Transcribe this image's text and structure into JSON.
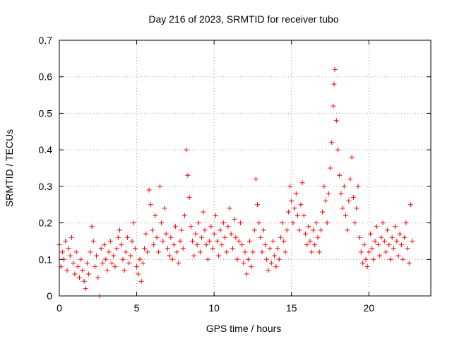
{
  "chart_data": {
    "type": "scatter",
    "title": "Day 216 of 2023, SRMTID for receiver tubo",
    "xlabel": "GPS time / hours",
    "ylabel": "SRMTID / TECUs",
    "xlim": [
      0,
      24
    ],
    "ylim": [
      0,
      0.7
    ],
    "xticks": [
      0,
      5,
      10,
      15,
      20
    ],
    "yticks": [
      0,
      0.1,
      0.2,
      0.3,
      0.4,
      0.5,
      0.6,
      0.7
    ],
    "xtick_labels": [
      "0",
      "5",
      "10",
      "15",
      "20"
    ],
    "ytick_labels": [
      "0",
      "0.1",
      "0.2",
      "0.3",
      "0.4",
      "0.5",
      "0.6",
      "0.7"
    ],
    "grid": true,
    "marker": "plus",
    "color": "#ff0000",
    "series": [
      {
        "name": "SRMTID",
        "points": [
          [
            0.0,
            0.14
          ],
          [
            0.1,
            0.08
          ],
          [
            0.2,
            0.12
          ],
          [
            0.3,
            0.1
          ],
          [
            0.4,
            0.15
          ],
          [
            0.5,
            0.07
          ],
          [
            0.6,
            0.13
          ],
          [
            0.7,
            0.11
          ],
          [
            0.8,
            0.16
          ],
          [
            0.9,
            0.09
          ],
          [
            1.0,
            0.06
          ],
          [
            1.1,
            0.12
          ],
          [
            1.2,
            0.08
          ],
          [
            1.3,
            0.05
          ],
          [
            1.4,
            0.1
          ],
          [
            1.5,
            0.07
          ],
          [
            1.6,
            0.04
          ],
          [
            1.7,
            0.02
          ],
          [
            1.8,
            0.09
          ],
          [
            1.9,
            0.06
          ],
          [
            2.0,
            0.12
          ],
          [
            2.1,
            0.19
          ],
          [
            2.2,
            0.15
          ],
          [
            2.3,
            0.08
          ],
          [
            2.4,
            0.11
          ],
          [
            2.5,
            0.05
          ],
          [
            2.6,
            0.0
          ],
          [
            2.7,
            0.13
          ],
          [
            2.8,
            0.09
          ],
          [
            2.9,
            0.14
          ],
          [
            3.0,
            0.1
          ],
          [
            3.1,
            0.07
          ],
          [
            3.2,
            0.12
          ],
          [
            3.3,
            0.15
          ],
          [
            3.4,
            0.09
          ],
          [
            3.5,
            0.11
          ],
          [
            3.6,
            0.08
          ],
          [
            3.7,
            0.13
          ],
          [
            3.8,
            0.16
          ],
          [
            3.9,
            0.18
          ],
          [
            4.0,
            0.14
          ],
          [
            4.1,
            0.1
          ],
          [
            4.2,
            0.07
          ],
          [
            4.3,
            0.12
          ],
          [
            4.4,
            0.16
          ],
          [
            4.5,
            0.09
          ],
          [
            4.6,
            0.11
          ],
          [
            4.7,
            0.15
          ],
          [
            4.8,
            0.2
          ],
          [
            4.9,
            0.13
          ],
          [
            5.0,
            0.08
          ],
          [
            5.1,
            0.06
          ],
          [
            5.2,
            0.1
          ],
          [
            5.3,
            0.04
          ],
          [
            5.4,
            0.09
          ],
          [
            5.5,
            0.13
          ],
          [
            5.6,
            0.17
          ],
          [
            5.7,
            0.12
          ],
          [
            5.8,
            0.29
          ],
          [
            5.9,
            0.25
          ],
          [
            6.0,
            0.18
          ],
          [
            6.1,
            0.14
          ],
          [
            6.2,
            0.22
          ],
          [
            6.3,
            0.16
          ],
          [
            6.4,
            0.12
          ],
          [
            6.5,
            0.3
          ],
          [
            6.6,
            0.2
          ],
          [
            6.7,
            0.15
          ],
          [
            6.8,
            0.24
          ],
          [
            6.9,
            0.17
          ],
          [
            7.0,
            0.13
          ],
          [
            7.1,
            0.11
          ],
          [
            7.2,
            0.16
          ],
          [
            7.3,
            0.1
          ],
          [
            7.4,
            0.14
          ],
          [
            7.5,
            0.19
          ],
          [
            7.6,
            0.12
          ],
          [
            7.7,
            0.09
          ],
          [
            7.8,
            0.15
          ],
          [
            7.9,
            0.18
          ],
          [
            8.0,
            0.13
          ],
          [
            8.1,
            0.22
          ],
          [
            8.2,
            0.4
          ],
          [
            8.3,
            0.33
          ],
          [
            8.4,
            0.27
          ],
          [
            8.5,
            0.19
          ],
          [
            8.6,
            0.15
          ],
          [
            8.7,
            0.11
          ],
          [
            8.8,
            0.17
          ],
          [
            8.9,
            0.14
          ],
          [
            9.0,
            0.2
          ],
          [
            9.1,
            0.12
          ],
          [
            9.2,
            0.16
          ],
          [
            9.3,
            0.23
          ],
          [
            9.4,
            0.18
          ],
          [
            9.5,
            0.14
          ],
          [
            9.6,
            0.1
          ],
          [
            9.7,
            0.15
          ],
          [
            9.8,
            0.19
          ],
          [
            9.9,
            0.13
          ],
          [
            10.0,
            0.17
          ],
          [
            10.1,
            0.22
          ],
          [
            10.2,
            0.15
          ],
          [
            10.3,
            0.11
          ],
          [
            10.4,
            0.18
          ],
          [
            10.5,
            0.14
          ],
          [
            10.6,
            0.2
          ],
          [
            10.7,
            0.16
          ],
          [
            10.8,
            0.12
          ],
          [
            10.9,
            0.19
          ],
          [
            11.0,
            0.24
          ],
          [
            11.1,
            0.17
          ],
          [
            11.2,
            0.13
          ],
          [
            11.3,
            0.21
          ],
          [
            11.4,
            0.16
          ],
          [
            11.5,
            0.1
          ],
          [
            11.6,
            0.15
          ],
          [
            11.7,
            0.2
          ],
          [
            11.8,
            0.14
          ],
          [
            11.9,
            0.09
          ],
          [
            12.0,
            0.12
          ],
          [
            12.1,
            0.06
          ],
          [
            12.2,
            0.1
          ],
          [
            12.3,
            0.15
          ],
          [
            12.4,
            0.08
          ],
          [
            12.5,
            0.12
          ],
          [
            12.6,
            0.18
          ],
          [
            12.7,
            0.32
          ],
          [
            12.8,
            0.25
          ],
          [
            12.9,
            0.2
          ],
          [
            13.0,
            0.16
          ],
          [
            13.1,
            0.12
          ],
          [
            13.2,
            0.18
          ],
          [
            13.3,
            0.14
          ],
          [
            13.4,
            0.1
          ],
          [
            13.5,
            0.07
          ],
          [
            13.6,
            0.13
          ],
          [
            13.7,
            0.09
          ],
          [
            13.8,
            0.15
          ],
          [
            13.9,
            0.11
          ],
          [
            14.0,
            0.08
          ],
          [
            14.1,
            0.13
          ],
          [
            14.2,
            0.1
          ],
          [
            14.3,
            0.16
          ],
          [
            14.4,
            0.2
          ],
          [
            14.5,
            0.15
          ],
          [
            14.6,
            0.12
          ],
          [
            14.7,
            0.18
          ],
          [
            14.8,
            0.23
          ],
          [
            14.9,
            0.3
          ],
          [
            15.0,
            0.26
          ],
          [
            15.1,
            0.2
          ],
          [
            15.2,
            0.24
          ],
          [
            15.3,
            0.28
          ],
          [
            15.4,
            0.22
          ],
          [
            15.5,
            0.18
          ],
          [
            15.6,
            0.25
          ],
          [
            15.7,
            0.31
          ],
          [
            15.8,
            0.22
          ],
          [
            15.9,
            0.17
          ],
          [
            16.0,
            0.14
          ],
          [
            16.1,
            0.19
          ],
          [
            16.2,
            0.15
          ],
          [
            16.3,
            0.12
          ],
          [
            16.4,
            0.18
          ],
          [
            16.5,
            0.14
          ],
          [
            16.6,
            0.2
          ],
          [
            16.7,
            0.16
          ],
          [
            16.8,
            0.12
          ],
          [
            16.9,
            0.18
          ],
          [
            17.0,
            0.23
          ],
          [
            17.1,
            0.3
          ],
          [
            17.2,
            0.26
          ],
          [
            17.3,
            0.2
          ],
          [
            17.4,
            0.28
          ],
          [
            17.5,
            0.35
          ],
          [
            17.6,
            0.42
          ],
          [
            17.7,
            0.52
          ],
          [
            17.75,
            0.58
          ],
          [
            17.8,
            0.62
          ],
          [
            17.9,
            0.48
          ],
          [
            18.0,
            0.4
          ],
          [
            18.1,
            0.33
          ],
          [
            18.2,
            0.28
          ],
          [
            18.3,
            0.24
          ],
          [
            18.4,
            0.3
          ],
          [
            18.5,
            0.22
          ],
          [
            18.6,
            0.18
          ],
          [
            18.7,
            0.26
          ],
          [
            18.8,
            0.32
          ],
          [
            18.9,
            0.38
          ],
          [
            19.0,
            0.27
          ],
          [
            19.1,
            0.2
          ],
          [
            19.2,
            0.24
          ],
          [
            19.3,
            0.3
          ],
          [
            19.4,
            0.16
          ],
          [
            19.5,
            0.12
          ],
          [
            19.6,
            0.09
          ],
          [
            19.7,
            0.14
          ],
          [
            19.8,
            0.1
          ],
          [
            19.9,
            0.08
          ],
          [
            20.0,
            0.12
          ],
          [
            20.1,
            0.17
          ],
          [
            20.2,
            0.13
          ],
          [
            20.3,
            0.1
          ],
          [
            20.4,
            0.15
          ],
          [
            20.5,
            0.19
          ],
          [
            20.6,
            0.14
          ],
          [
            20.7,
            0.11
          ],
          [
            20.8,
            0.16
          ],
          [
            20.9,
            0.2
          ],
          [
            21.0,
            0.15
          ],
          [
            21.1,
            0.12
          ],
          [
            21.2,
            0.18
          ],
          [
            21.3,
            0.14
          ],
          [
            21.4,
            0.1
          ],
          [
            21.5,
            0.16
          ],
          [
            21.6,
            0.13
          ],
          [
            21.7,
            0.19
          ],
          [
            21.8,
            0.15
          ],
          [
            21.9,
            0.11
          ],
          [
            22.0,
            0.17
          ],
          [
            22.1,
            0.14
          ],
          [
            22.2,
            0.1
          ],
          [
            22.3,
            0.16
          ],
          [
            22.4,
            0.2
          ],
          [
            22.5,
            0.13
          ],
          [
            22.6,
            0.09
          ],
          [
            22.7,
            0.25
          ],
          [
            22.8,
            0.15
          ]
        ]
      }
    ]
  }
}
